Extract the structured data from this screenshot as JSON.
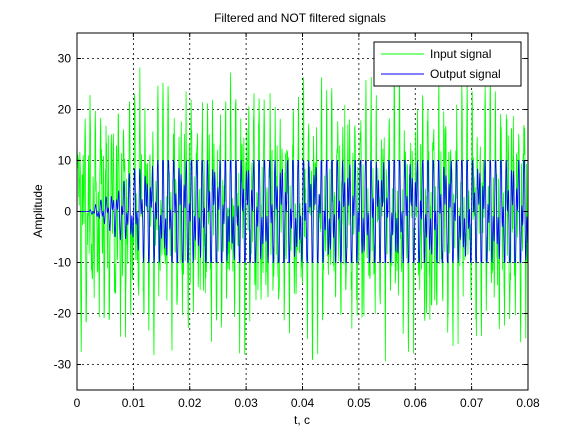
{
  "chart_data": {
    "type": "line",
    "title": "Filtered and NOT filtered signals",
    "xlabel": "t, c",
    "ylabel": "Amplitude",
    "xlim": [
      0,
      0.08
    ],
    "ylim": [
      -35,
      35
    ],
    "xticks": [
      0,
      0.01,
      0.02,
      0.03,
      0.04,
      0.05,
      0.06,
      0.07,
      0.08
    ],
    "xtick_labels": [
      "0",
      "0.01",
      "0.02",
      "0.03",
      "0.04",
      "0.05",
      "0.06",
      "0.07",
      "0.08"
    ],
    "yticks": [
      -30,
      -20,
      -10,
      0,
      10,
      20,
      30
    ],
    "ytick_labels": [
      "-30",
      "-20",
      "-10",
      "0",
      "10",
      "20",
      "30"
    ],
    "grid": true,
    "legend_position": "top-right",
    "series": [
      {
        "name": "Input signal",
        "color": "#00ff00",
        "description_of_shape": "noisy multi-tone signal with peaks around ±30",
        "x_start": 0,
        "x_end": 0.08,
        "amplitude_peak": 30
      },
      {
        "name": "Output signal",
        "color": "#0000ff",
        "x_start": 0,
        "x_end": 0.08,
        "settle_time": 0.015,
        "amplitude_peak": 10
      }
    ]
  }
}
